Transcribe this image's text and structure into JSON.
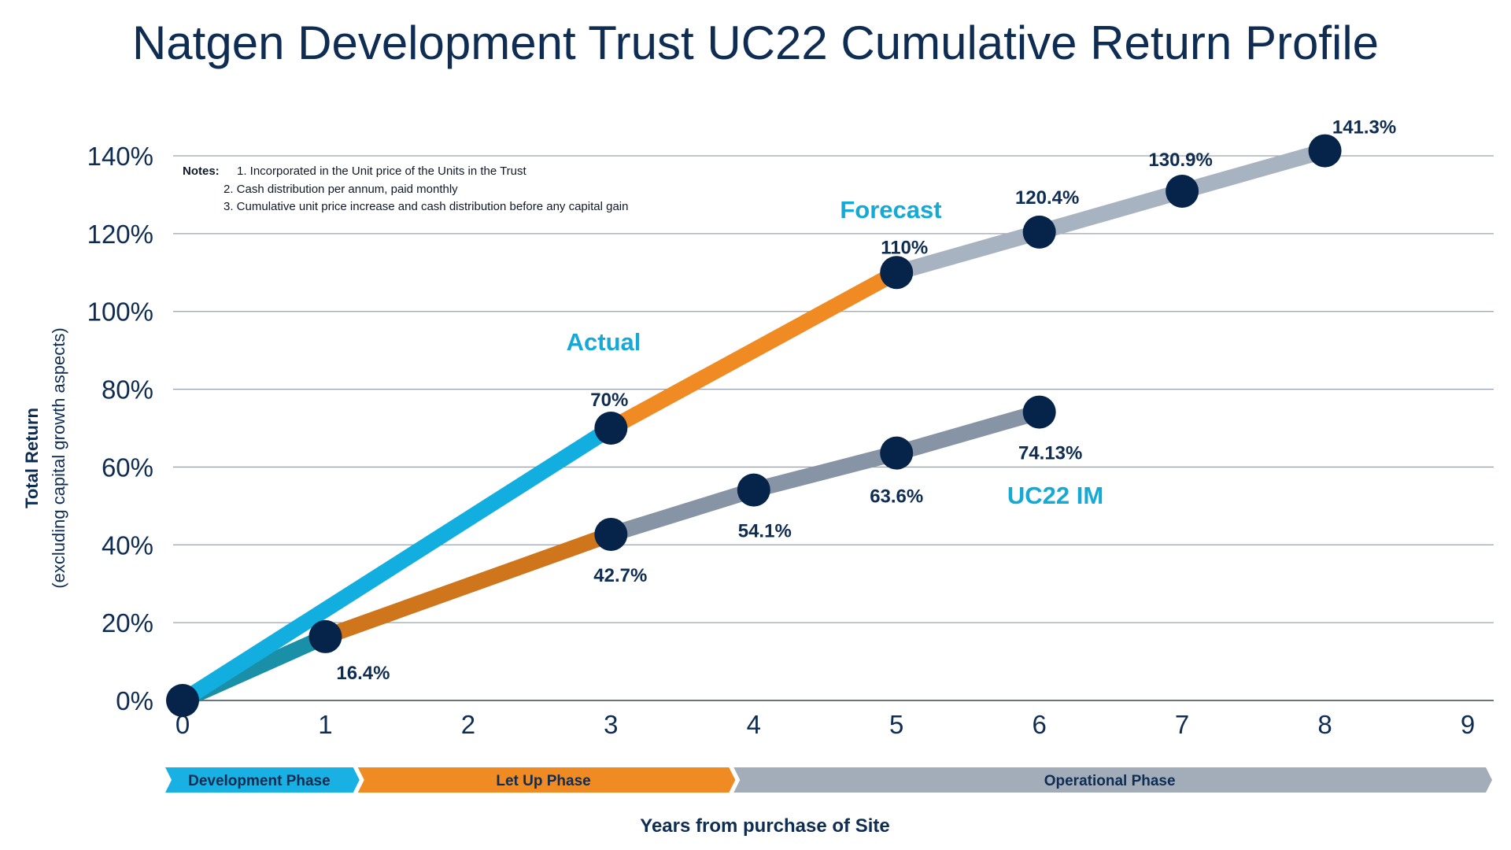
{
  "chart_data": {
    "type": "line",
    "title": "Natgen Development Trust UC22 Cumulative Return Profile",
    "ylabel": "Total Return",
    "ylabel_sub": "(excluding capital growth aspects)",
    "xlabel": "Years from purchase of Site",
    "xlim": [
      0,
      9
    ],
    "ylim": [
      0,
      140
    ],
    "xticks": [
      "0",
      "1",
      "2",
      "3",
      "4",
      "5",
      "6",
      "7",
      "8",
      "9"
    ],
    "yticks": [
      "0%",
      "20%",
      "40%",
      "60%",
      "80%",
      "100%",
      "120%",
      "140%"
    ],
    "grid": "horizontal",
    "series": [
      {
        "name": "Actual",
        "color": "#12aee0",
        "points": [
          {
            "x": 0,
            "y": 0
          },
          {
            "x": 3,
            "y": 70,
            "label": "70%"
          }
        ]
      },
      {
        "name": "Forecast",
        "color_segment_1": "#f08a22",
        "color_segment_2": "#a8b3c2",
        "points": [
          {
            "x": 3,
            "y": 70
          },
          {
            "x": 5,
            "y": 110,
            "label": "110%"
          },
          {
            "x": 6,
            "y": 120.4,
            "label": "120.4%"
          },
          {
            "x": 7,
            "y": 130.9,
            "label": "130.9%"
          },
          {
            "x": 8,
            "y": 141.3,
            "label": "141.3%"
          }
        ]
      },
      {
        "name": "UC22 IM",
        "color_segment_1": "#1a8fa8",
        "color_segment_2": "#cf761c",
        "color_segment_3": "#8794a6",
        "points": [
          {
            "x": 0,
            "y": 0
          },
          {
            "x": 1,
            "y": 16.4,
            "label": "16.4%"
          },
          {
            "x": 3,
            "y": 42.7,
            "label": "42.7%"
          },
          {
            "x": 4,
            "y": 54.1,
            "label": "54.1%"
          },
          {
            "x": 5,
            "y": 63.6,
            "label": "63.6%"
          },
          {
            "x": 6,
            "y": 74.13,
            "label": "74.13%"
          }
        ]
      }
    ],
    "notes": {
      "heading": "Notes:",
      "items": [
        "1. Incorporated in the Unit price of the Units in the Trust",
        "2. Cash distribution per annum, paid monthly",
        "3. Cumulative unit price increase and cash distribution before any capital gain"
      ]
    },
    "phases": [
      {
        "label": "Development Phase",
        "start": 0,
        "end": 1.3,
        "color": "#19b1e3"
      },
      {
        "label": "Let Up Phase",
        "start": 1.3,
        "end": 3.9,
        "color": "#f08a22"
      },
      {
        "label": "Operational Phase",
        "start": 3.9,
        "end": 9.1,
        "color": "#a3acb9"
      }
    ],
    "colors": {
      "marker": "#062349",
      "grid": "#9aa3af",
      "text": "#0f2d52",
      "annotation": "#15a9d6"
    }
  }
}
